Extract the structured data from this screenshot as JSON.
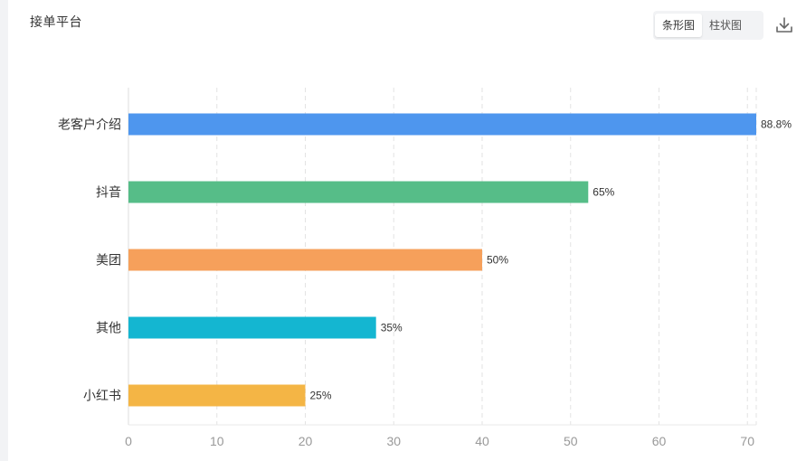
{
  "header": {
    "title": "接单平台",
    "toggle": {
      "bar_label": "条形图",
      "column_label": "柱状图",
      "active": "bar"
    },
    "download_icon": "download-icon"
  },
  "chart_data": {
    "type": "bar",
    "orientation": "horizontal",
    "categories": [
      "老客户介绍",
      "抖音",
      "美团",
      "其他",
      "小红书"
    ],
    "values": [
      71,
      52,
      40,
      28,
      20
    ],
    "data_labels": [
      "88.8%",
      "65%",
      "50%",
      "35%",
      "25%"
    ],
    "colors": [
      "#4e96ee",
      "#56bd88",
      "#f6a05b",
      "#14b6d1",
      "#f4b545"
    ],
    "x_ticks": [
      0,
      10,
      20,
      30,
      40,
      50,
      60,
      70
    ],
    "xlim": [
      0,
      71
    ],
    "grid": true,
    "title": "",
    "xlabel": "",
    "ylabel": ""
  }
}
